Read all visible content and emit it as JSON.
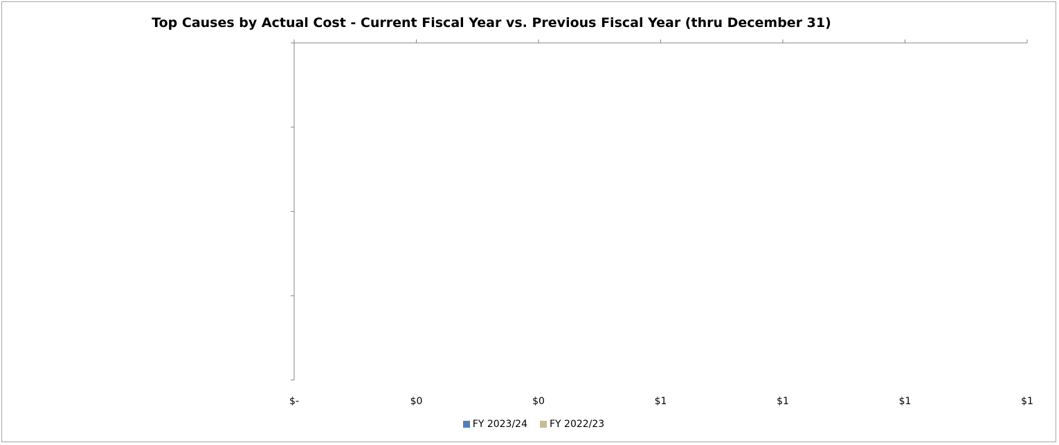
{
  "chart_data": {
    "type": "bar",
    "orientation": "horizontal",
    "title": "Top Causes by Actual Cost - Current Fiscal Year vs. Previous Fiscal Year (thru December 31)",
    "xlabel": "",
    "ylabel": "",
    "categories": [],
    "x_tick_labels": [
      "$-",
      "$0",
      "$0",
      "$1",
      "$1",
      "$1",
      "$1"
    ],
    "series": [
      {
        "name": "FY 2023/24",
        "color": "#4f81bd",
        "values": []
      },
      {
        "name": "FY 2022/23",
        "color": "#c4bd97",
        "values": []
      }
    ],
    "xlim": [
      0,
      1
    ],
    "x_axis_position": "top",
    "grid": false,
    "legend_position": "bottom"
  }
}
